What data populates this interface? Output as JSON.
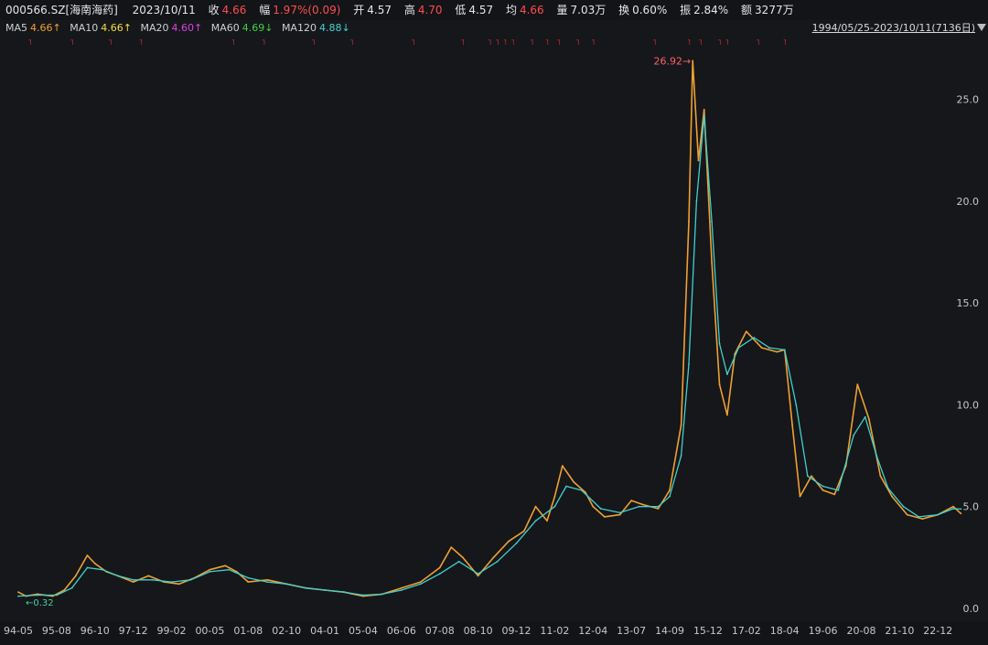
{
  "header": {
    "symbol": "000566.SZ[海南海药]",
    "date": "2023/10/11",
    "close_label": "收",
    "close": "4.66",
    "change_label": "幅",
    "change": "1.97%(0.09)",
    "open_label": "开",
    "open": "4.57",
    "high_label": "高",
    "high": "4.70",
    "low_label": "低",
    "low": "4.57",
    "avg_label": "均",
    "avg": "4.66",
    "vol_label": "量",
    "vol": "7.03万",
    "turnover_label": "换",
    "turnover": "0.60%",
    "amplitude_label": "振",
    "amplitude": "2.84%",
    "amount_label": "额",
    "amount": "3277万"
  },
  "ma_bar": {
    "items": [
      {
        "label": "MA5",
        "value": "4.66↑",
        "color": "#f0a030"
      },
      {
        "label": "MA10",
        "value": "4.66↑",
        "color": "#f0e040"
      },
      {
        "label": "MA20",
        "value": "4.60↑",
        "color": "#e040e0"
      },
      {
        "label": "MA60",
        "value": "4.69↓",
        "color": "#40d040"
      },
      {
        "label": "MA120",
        "value": "4.88↓",
        "color": "#40d0d0"
      }
    ],
    "date_range": "1994/05/25-2023/10/11(7136日)"
  },
  "chart_data": {
    "type": "line",
    "x_labels": [
      "94-05",
      "95-08",
      "96-10",
      "97-12",
      "99-02",
      "00-05",
      "01-08",
      "02-10",
      "04-01",
      "05-04",
      "06-06",
      "07-08",
      "08-10",
      "09-12",
      "11-02",
      "12-04",
      "13-07",
      "14-09",
      "15-12",
      "17-02",
      "18-04",
      "19-06",
      "20-08",
      "21-10",
      "22-12"
    ],
    "ylim": [
      0,
      27.5
    ],
    "yticks": [
      "0.0",
      "5.0",
      "10.0",
      "15.0",
      "20.0",
      "25.0"
    ],
    "max_annotation": "26.92→",
    "min_annotation": "←0.32",
    "series": [
      {
        "color": "#f0a030",
        "points": [
          [
            0,
            0.8
          ],
          [
            0.2,
            0.6
          ],
          [
            0.5,
            0.7
          ],
          [
            0.9,
            0.6
          ],
          [
            1.2,
            0.9
          ],
          [
            1.5,
            1.6
          ],
          [
            1.8,
            2.6
          ],
          [
            2.0,
            2.2
          ],
          [
            2.3,
            1.8
          ],
          [
            2.6,
            1.6
          ],
          [
            3.0,
            1.3
          ],
          [
            3.4,
            1.6
          ],
          [
            3.8,
            1.3
          ],
          [
            4.2,
            1.2
          ],
          [
            4.6,
            1.5
          ],
          [
            5.0,
            1.9
          ],
          [
            5.4,
            2.1
          ],
          [
            5.7,
            1.8
          ],
          [
            6.0,
            1.3
          ],
          [
            6.5,
            1.4
          ],
          [
            7.0,
            1.2
          ],
          [
            7.5,
            1.0
          ],
          [
            8.0,
            0.9
          ],
          [
            8.5,
            0.8
          ],
          [
            9.0,
            0.6
          ],
          [
            9.5,
            0.7
          ],
          [
            10.0,
            1.0
          ],
          [
            10.5,
            1.3
          ],
          [
            11.0,
            2.0
          ],
          [
            11.3,
            3.0
          ],
          [
            11.6,
            2.5
          ],
          [
            12.0,
            1.6
          ],
          [
            12.4,
            2.5
          ],
          [
            12.8,
            3.3
          ],
          [
            13.2,
            3.8
          ],
          [
            13.5,
            5.0
          ],
          [
            13.8,
            4.3
          ],
          [
            14.0,
            5.5
          ],
          [
            14.2,
            7.0
          ],
          [
            14.5,
            6.2
          ],
          [
            14.8,
            5.7
          ],
          [
            15.0,
            5.0
          ],
          [
            15.3,
            4.5
          ],
          [
            15.7,
            4.6
          ],
          [
            16.0,
            5.3
          ],
          [
            16.3,
            5.1
          ],
          [
            16.7,
            4.9
          ],
          [
            17.0,
            5.8
          ],
          [
            17.3,
            9.0
          ],
          [
            17.5,
            19.0
          ],
          [
            17.6,
            26.9
          ],
          [
            17.75,
            22.0
          ],
          [
            17.9,
            24.5
          ],
          [
            18.1,
            17.0
          ],
          [
            18.3,
            11.0
          ],
          [
            18.5,
            9.5
          ],
          [
            18.7,
            12.5
          ],
          [
            19.0,
            13.6
          ],
          [
            19.4,
            12.8
          ],
          [
            19.8,
            12.6
          ],
          [
            20.0,
            12.7
          ],
          [
            20.2,
            9.0
          ],
          [
            20.4,
            5.5
          ],
          [
            20.7,
            6.5
          ],
          [
            21.0,
            5.8
          ],
          [
            21.3,
            5.6
          ],
          [
            21.6,
            7.0
          ],
          [
            21.9,
            11.0
          ],
          [
            22.2,
            9.3
          ],
          [
            22.5,
            6.5
          ],
          [
            22.8,
            5.5
          ],
          [
            23.2,
            4.6
          ],
          [
            23.6,
            4.4
          ],
          [
            24.0,
            4.6
          ],
          [
            24.4,
            5.0
          ],
          [
            24.6,
            4.66
          ]
        ]
      },
      {
        "color": "#40d0d0",
        "points": [
          [
            0,
            0.6
          ],
          [
            0.5,
            0.65
          ],
          [
            1.0,
            0.65
          ],
          [
            1.4,
            1.0
          ],
          [
            1.8,
            2.0
          ],
          [
            2.2,
            1.9
          ],
          [
            2.6,
            1.6
          ],
          [
            3.0,
            1.4
          ],
          [
            3.5,
            1.4
          ],
          [
            4.0,
            1.3
          ],
          [
            4.5,
            1.4
          ],
          [
            5.0,
            1.8
          ],
          [
            5.5,
            1.9
          ],
          [
            6.0,
            1.5
          ],
          [
            6.5,
            1.3
          ],
          [
            7.0,
            1.2
          ],
          [
            7.5,
            1.0
          ],
          [
            8.0,
            0.9
          ],
          [
            8.5,
            0.8
          ],
          [
            9.0,
            0.65
          ],
          [
            9.5,
            0.7
          ],
          [
            10.0,
            0.9
          ],
          [
            10.5,
            1.2
          ],
          [
            11.0,
            1.7
          ],
          [
            11.5,
            2.3
          ],
          [
            12.0,
            1.7
          ],
          [
            12.5,
            2.3
          ],
          [
            13.0,
            3.2
          ],
          [
            13.5,
            4.3
          ],
          [
            14.0,
            5.0
          ],
          [
            14.3,
            6.0
          ],
          [
            14.7,
            5.8
          ],
          [
            15.2,
            4.9
          ],
          [
            15.7,
            4.7
          ],
          [
            16.2,
            5.0
          ],
          [
            16.7,
            5.0
          ],
          [
            17.0,
            5.5
          ],
          [
            17.3,
            7.5
          ],
          [
            17.5,
            12.0
          ],
          [
            17.7,
            20.0
          ],
          [
            17.9,
            24.2
          ],
          [
            18.1,
            19.0
          ],
          [
            18.3,
            13.0
          ],
          [
            18.5,
            11.5
          ],
          [
            18.8,
            12.8
          ],
          [
            19.2,
            13.3
          ],
          [
            19.6,
            12.8
          ],
          [
            20.0,
            12.7
          ],
          [
            20.3,
            10.0
          ],
          [
            20.6,
            6.5
          ],
          [
            21.0,
            6.0
          ],
          [
            21.4,
            5.8
          ],
          [
            21.8,
            8.5
          ],
          [
            22.1,
            9.4
          ],
          [
            22.4,
            7.5
          ],
          [
            22.7,
            5.9
          ],
          [
            23.1,
            5.0
          ],
          [
            23.5,
            4.5
          ],
          [
            24.0,
            4.6
          ],
          [
            24.4,
            4.9
          ],
          [
            24.6,
            4.88
          ]
        ]
      }
    ]
  }
}
